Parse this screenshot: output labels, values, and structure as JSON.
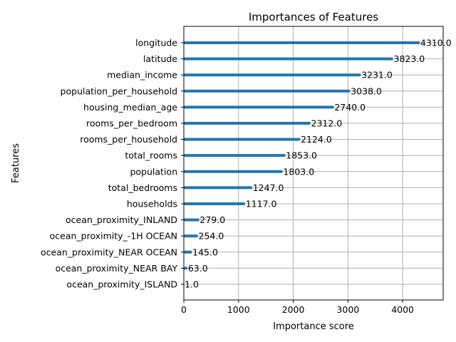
{
  "chart_data": {
    "type": "bar",
    "orientation": "horizontal",
    "title": "Importances of Features",
    "xlabel": "Importance score",
    "ylabel": "Features",
    "xlim": [
      0,
      4741
    ],
    "xticks": [
      0,
      1000,
      2000,
      3000,
      4000
    ],
    "grid": true,
    "categories": [
      "longitude",
      "latitude",
      "median_income",
      "population_per_household",
      "housing_median_age",
      "rooms_per_bedroom",
      "rooms_per_household",
      "total_rooms",
      "population",
      "total_bedrooms",
      "households",
      "ocean_proximity_INLAND",
      "ocean_proximity_-1H OCEAN",
      "ocean_proximity_NEAR OCEAN",
      "ocean_proximity_NEAR BAY",
      "ocean_proximity_ISLAND"
    ],
    "values": [
      4310,
      3823,
      3231,
      3038,
      2740,
      2312,
      2124,
      1853,
      1803,
      1247,
      1117,
      279,
      254,
      145,
      63,
      1
    ],
    "value_labels": [
      "4310.0",
      "3823.0",
      "3231.0",
      "3038.0",
      "2740.0",
      "2312.0",
      "2124.0",
      "1853.0",
      "1803.0",
      "1247.0",
      "1117.0",
      "279.0",
      "254.0",
      "145.0",
      "63.0",
      "1.0"
    ],
    "bar_color": "#1f77b4"
  }
}
